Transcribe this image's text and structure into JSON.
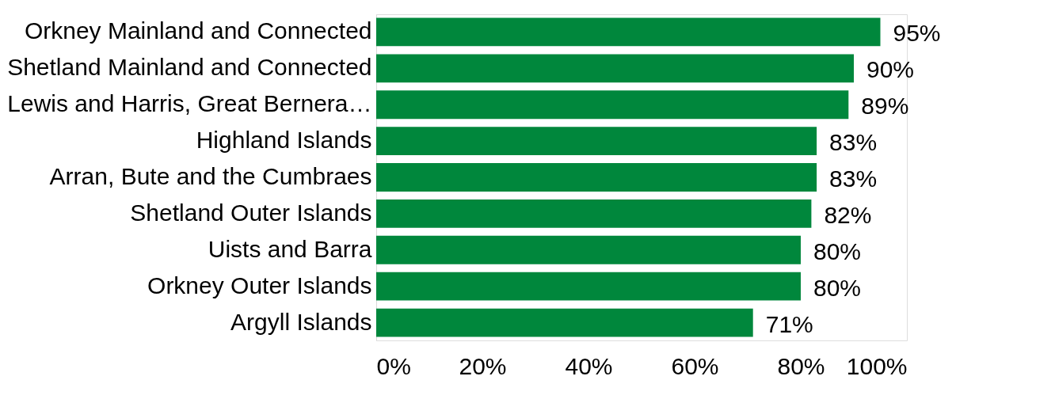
{
  "chart_data": {
    "type": "bar",
    "orientation": "horizontal",
    "categories": [
      "Orkney Mainland and Connected",
      "Shetland Mainland and Connected",
      "Lewis and Harris, Great Bernera…",
      "Highland Islands",
      "Arran, Bute and the Cumbraes",
      "Shetland Outer Islands",
      "Uists and Barra",
      "Orkney Outer Islands",
      "Argyll Islands"
    ],
    "series": [
      {
        "color": "#00873c",
        "values": [
          95,
          90,
          89,
          83,
          83,
          82,
          80,
          80,
          71
        ],
        "value_labels": [
          "95%",
          "90%",
          "89%",
          "83%",
          "83%",
          "82%",
          "80%",
          "80%",
          "71%"
        ]
      }
    ],
    "xlim": [
      0,
      100
    ],
    "xticks": [
      {
        "value": 0,
        "label": "0%"
      },
      {
        "value": 20,
        "label": "20%"
      },
      {
        "value": 40,
        "label": "40%"
      },
      {
        "value": 60,
        "label": "60%"
      },
      {
        "value": 80,
        "label": "80%"
      },
      {
        "value": 100,
        "label": "100%"
      }
    ],
    "grid": false,
    "legend": false
  }
}
